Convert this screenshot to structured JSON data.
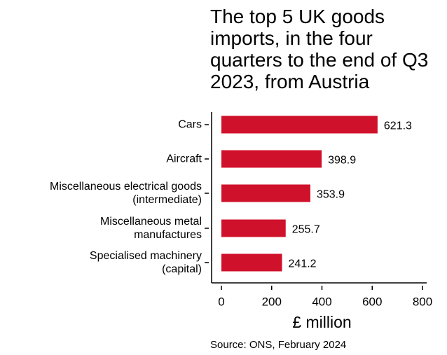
{
  "chart_data": {
    "type": "bar",
    "orientation": "horizontal",
    "title": "The top 5 UK goods imports, in the four quarters to the end of Q3 2023, from Austria",
    "categories": [
      [
        "Cars"
      ],
      [
        "Aircraft"
      ],
      [
        "Miscellaneous electrical goods",
        "(intermediate)"
      ],
      [
        "Miscellaneous metal",
        "manufactures"
      ],
      [
        "Specialised machinery",
        "(capital)"
      ]
    ],
    "values": [
      621.3,
      398.9,
      353.9,
      255.7,
      241.2
    ],
    "value_labels": [
      "621.3",
      "398.9",
      "353.9",
      "255.7",
      "241.2"
    ],
    "xlabel": "£ million",
    "ylabel": "",
    "xlim": [
      0,
      800
    ],
    "xticks": [
      0,
      200,
      400,
      600,
      800
    ],
    "bar_color": "#d0112b",
    "grid": false,
    "source": "Source: ONS, February 2024"
  }
}
